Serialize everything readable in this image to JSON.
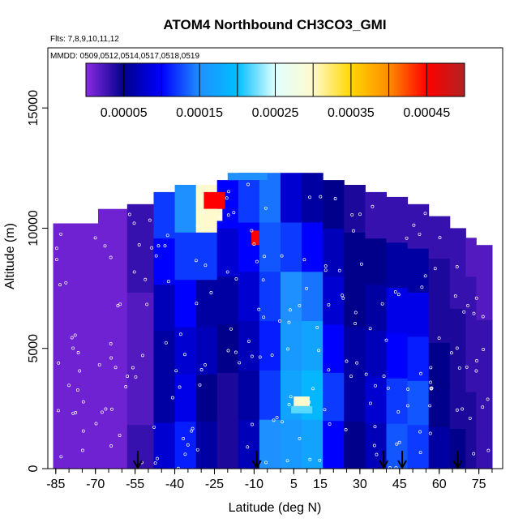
{
  "chart_data": {
    "type": "heatmap",
    "title": "ATOM4 Northbound CH3CO3_GMI",
    "subtitle_flights": "Flts: 7,8,9,10,11,12",
    "subtitle_dates": "MMDD: 0509,0512,0514,0517,0518,0519",
    "xlabel": "Latitude (deg N)",
    "ylabel": "Altitude (m)",
    "xlim": [
      -88,
      84
    ],
    "ylim": [
      0,
      17500
    ],
    "x_ticks": [
      -85,
      -70,
      -55,
      -40,
      -25,
      -10,
      5,
      15,
      30,
      45,
      60,
      75
    ],
    "x_tick_labels": [
      "-85",
      "-70",
      "-55",
      "-40",
      "-25",
      "-10",
      "5",
      "15",
      "30",
      "45",
      "60",
      "75"
    ],
    "y_ticks": [
      0,
      5000,
      10000,
      15000
    ],
    "y_tick_labels": [
      "0",
      "5000",
      "10000",
      "15000"
    ],
    "colorbar": {
      "min": 0.0,
      "max": 0.0005,
      "tick_values": [
        5e-05,
        0.00015,
        0.00025,
        0.00035,
        0.00045
      ],
      "tick_labels": [
        "0.00005",
        "0.00015",
        "0.00025",
        "0.00035",
        "0.00045"
      ],
      "colors": [
        "#8a2be2",
        "#00008b",
        "#0000ff",
        "#1e90ff",
        "#00bfff",
        "#e0ffff",
        "#fffacd",
        "#ffd700",
        "#ff8c00",
        "#ff0000",
        "#b22222"
      ]
    },
    "arrow_latitudes": [
      -54,
      -9,
      39,
      46,
      67
    ],
    "columns": [
      {
        "lat": [
          -86,
          -69
        ],
        "top": 10200,
        "values": [
          1e-05,
          1e-05,
          1e-05,
          1e-05,
          1e-05,
          1e-05
        ]
      },
      {
        "lat": [
          -69,
          -58
        ],
        "top": 10800,
        "values": [
          1e-05,
          1e-05,
          1e-05,
          1e-05,
          1e-05,
          1e-05
        ]
      },
      {
        "lat": [
          -58,
          -48
        ],
        "top": 11000,
        "values": [
          3e-05,
          2e-05,
          2e-05,
          2e-05,
          3e-05,
          3e-05
        ]
      },
      {
        "lat": [
          -48,
          -40
        ],
        "top": 11500,
        "values": [
          8e-05,
          6e-05,
          6e-05,
          7e-05,
          0.0001,
          0.00012
        ]
      },
      {
        "lat": [
          -40,
          -32
        ],
        "top": 11800,
        "values": [
          0.00011,
          9e-05,
          8e-05,
          0.0001,
          0.00012,
          0.00015
        ]
      },
      {
        "lat": [
          -32,
          -24
        ],
        "top": 11800,
        "values": [
          6e-05,
          5e-05,
          7e-05,
          6e-05,
          0.00012,
          0.0003
        ]
      },
      {
        "lat": [
          -24,
          -16
        ],
        "top": 12000,
        "values": [
          4e-05,
          4e-05,
          5e-05,
          6e-05,
          8e-05,
          0.0001
        ]
      },
      {
        "lat": [
          -16,
          -8
        ],
        "top": 12300,
        "values": [
          7e-05,
          6e-05,
          7e-05,
          8e-05,
          0.0001,
          0.00012
        ]
      },
      {
        "lat": [
          -8,
          0
        ],
        "top": 12300,
        "values": [
          0.00015,
          0.00012,
          0.00011,
          0.00012,
          0.00013,
          0.00014
        ]
      },
      {
        "lat": [
          0,
          8
        ],
        "top": 12300,
        "values": [
          0.00016,
          0.00017,
          0.00016,
          0.00015,
          0.00012,
          8e-05
        ]
      },
      {
        "lat": [
          8,
          16
        ],
        "top": 12300,
        "values": [
          0.00017,
          0.00019,
          0.00017,
          0.00014,
          0.0001,
          6e-05
        ]
      },
      {
        "lat": [
          16,
          24
        ],
        "top": 12000,
        "values": [
          0.0001,
          0.00012,
          0.0001,
          8e-05,
          7e-05,
          5e-05
        ]
      },
      {
        "lat": [
          24,
          32
        ],
        "top": 11800,
        "values": [
          5e-05,
          6e-05,
          6e-05,
          5e-05,
          5e-05,
          4e-05
        ]
      },
      {
        "lat": [
          32,
          40
        ],
        "top": 11500,
        "values": [
          7e-05,
          8e-05,
          7e-05,
          6e-05,
          5e-05,
          3e-05
        ]
      },
      {
        "lat": [
          40,
          48
        ],
        "top": 11300,
        "values": [
          0.00013,
          0.00012,
          0.0001,
          9e-05,
          6e-05,
          3e-05
        ]
      },
      {
        "lat": [
          48,
          56
        ],
        "top": 11000,
        "values": [
          0.00012,
          0.00013,
          0.00011,
          9e-05,
          6e-05,
          3e-05
        ]
      },
      {
        "lat": [
          56,
          64
        ],
        "top": 10500,
        "values": [
          6e-05,
          5e-05,
          5e-05,
          4e-05,
          4e-05,
          3e-05
        ]
      },
      {
        "lat": [
          64,
          70
        ],
        "top": 10000,
        "values": [
          5e-05,
          4e-05,
          4e-05,
          4e-05,
          3e-05,
          3e-05
        ]
      },
      {
        "lat": [
          70,
          74
        ],
        "top": 9600,
        "values": [
          4e-05,
          4e-05,
          3e-05,
          3e-05,
          3e-05,
          2e-05
        ]
      },
      {
        "lat": [
          74,
          80
        ],
        "top": 9300,
        "values": [
          3e-05,
          3e-05,
          3e-05,
          3e-05,
          2e-05,
          2e-05
        ]
      }
    ],
    "hotspots": [
      {
        "lat": [
          -29,
          -21
        ],
        "alt": [
          10800,
          11500
        ],
        "value": 0.00045
      },
      {
        "lat": [
          -30,
          -22
        ],
        "alt": [
          10300,
          10800
        ],
        "value": 0.0003
      },
      {
        "lat": [
          -11,
          -8
        ],
        "alt": [
          9300,
          9900
        ],
        "value": 0.00045
      },
      {
        "lat": [
          5,
          11
        ],
        "alt": [
          2600,
          3000
        ],
        "value": 0.0003
      },
      {
        "lat": [
          4,
          12
        ],
        "alt": [
          2300,
          2600
        ],
        "value": 0.00022
      },
      {
        "lat": [
          -20,
          -5
        ],
        "alt": [
          12000,
          12300
        ],
        "value": 0.00015
      }
    ]
  }
}
